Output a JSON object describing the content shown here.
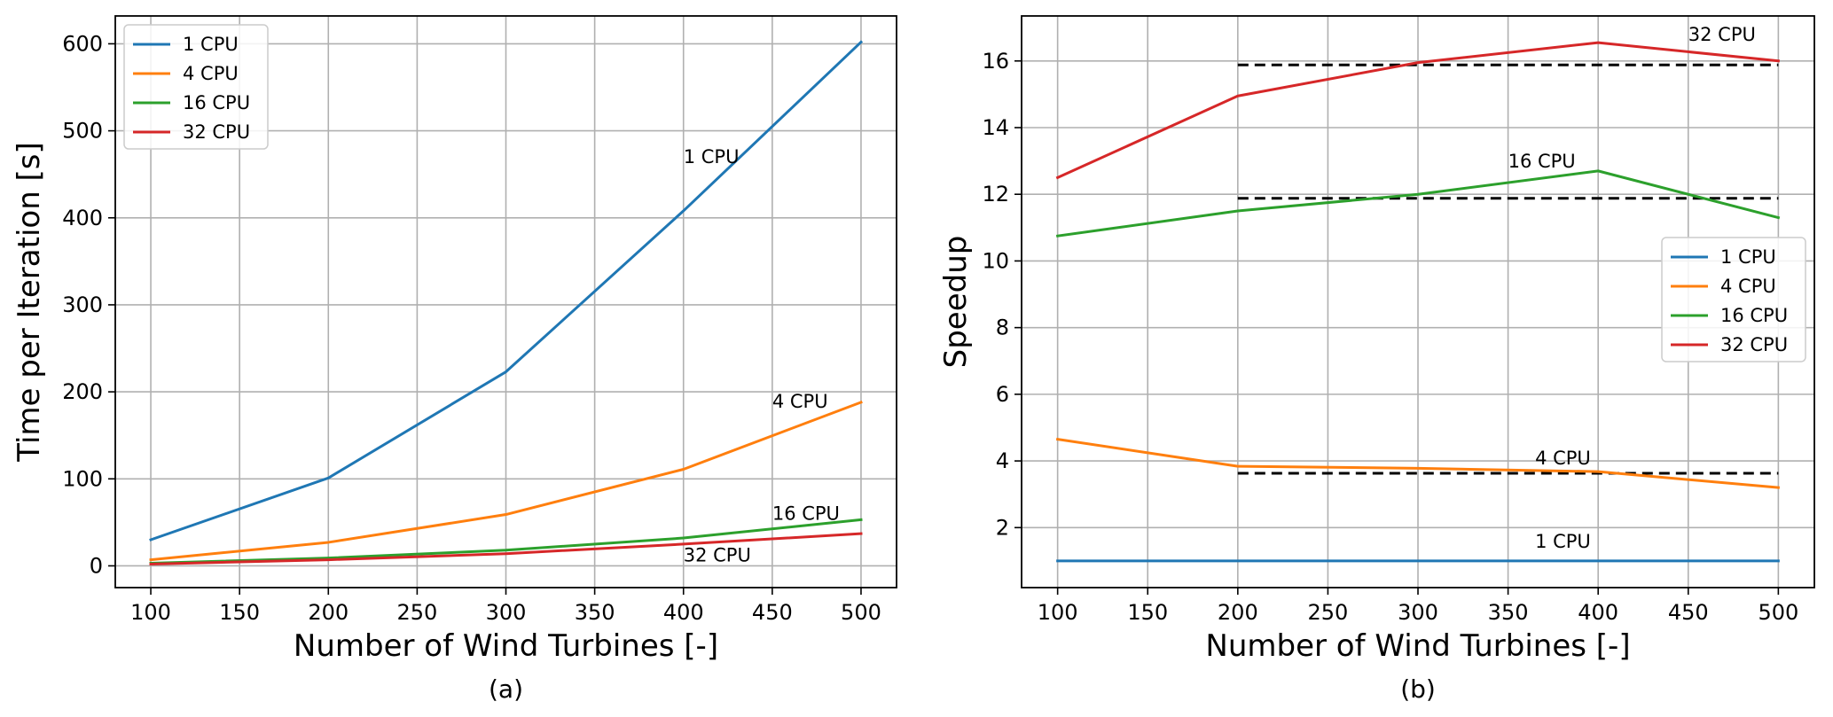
{
  "chart_data": [
    {
      "type": "line",
      "id": "a",
      "caption": "(a)",
      "xlabel": "Number of Wind Turbines [-]",
      "ylabel": "Time per Iteration [s]",
      "xlim": [
        80,
        520
      ],
      "ylim": [
        -25,
        632
      ],
      "xticks": [
        100,
        150,
        200,
        250,
        300,
        350,
        400,
        450,
        500
      ],
      "yticks": [
        0,
        100,
        200,
        300,
        400,
        500,
        600
      ],
      "grid": true,
      "legend_position": "top-left",
      "x": [
        100,
        200,
        300,
        400,
        500
      ],
      "series": [
        {
          "name": "1 CPU",
          "color": "#1f77b4",
          "values": [
            30,
            101,
            223,
            408,
            602
          ]
        },
        {
          "name": "4 CPU",
          "color": "#ff7f0e",
          "values": [
            7,
            27,
            59,
            111,
            188
          ]
        },
        {
          "name": "16 CPU",
          "color": "#2ca02c",
          "values": [
            3,
            9,
            18,
            32,
            53
          ]
        },
        {
          "name": "32 CPU",
          "color": "#d62728",
          "values": [
            2,
            7,
            14,
            25,
            37
          ]
        }
      ],
      "annotations": [
        {
          "text": "1 CPU",
          "x": 400,
          "y": 463
        },
        {
          "text": "4 CPU",
          "x": 450,
          "y": 182
        },
        {
          "text": "16 CPU",
          "x": 450,
          "y": 53
        },
        {
          "text": "32 CPU",
          "x": 400,
          "y": 5
        }
      ],
      "reference_lines": []
    },
    {
      "type": "line",
      "id": "b",
      "caption": "(b)",
      "xlabel": "Number of Wind Turbines [-]",
      "ylabel": "Speedup",
      "xlim": [
        80,
        520
      ],
      "ylim": [
        0.2,
        17.35
      ],
      "xticks": [
        100,
        150,
        200,
        250,
        300,
        350,
        400,
        450,
        500
      ],
      "yticks": [
        2,
        4,
        6,
        8,
        10,
        12,
        14,
        16
      ],
      "grid": true,
      "legend_position": "center-right",
      "x": [
        100,
        200,
        300,
        400,
        500
      ],
      "series": [
        {
          "name": "1 CPU",
          "color": "#1f77b4",
          "values": [
            1,
            1,
            1,
            1,
            1
          ]
        },
        {
          "name": "4 CPU",
          "color": "#ff7f0e",
          "values": [
            4.65,
            3.84,
            3.78,
            3.68,
            3.2
          ]
        },
        {
          "name": "16 CPU",
          "color": "#2ca02c",
          "values": [
            10.75,
            11.5,
            12.0,
            12.7,
            11.3
          ]
        },
        {
          "name": "32 CPU",
          "color": "#d62728",
          "values": [
            12.5,
            14.95,
            15.95,
            16.55,
            16.0
          ]
        }
      ],
      "annotations": [
        {
          "text": "32 CPU",
          "x": 450,
          "y": 16.6
        },
        {
          "text": "16 CPU",
          "x": 350,
          "y": 12.8
        },
        {
          "text": "4 CPU",
          "x": 365,
          "y": 3.9
        },
        {
          "text": "1 CPU",
          "x": 365,
          "y": 1.4
        }
      ],
      "reference_lines": [
        {
          "x_start": 200,
          "x_end": 500,
          "y": 15.88,
          "color": "#000000",
          "style": "dashed"
        },
        {
          "x_start": 200,
          "x_end": 500,
          "y": 11.88,
          "color": "#000000",
          "style": "dashed"
        },
        {
          "x_start": 200,
          "x_end": 500,
          "y": 3.63,
          "color": "#000000",
          "style": "dashed"
        }
      ]
    }
  ]
}
